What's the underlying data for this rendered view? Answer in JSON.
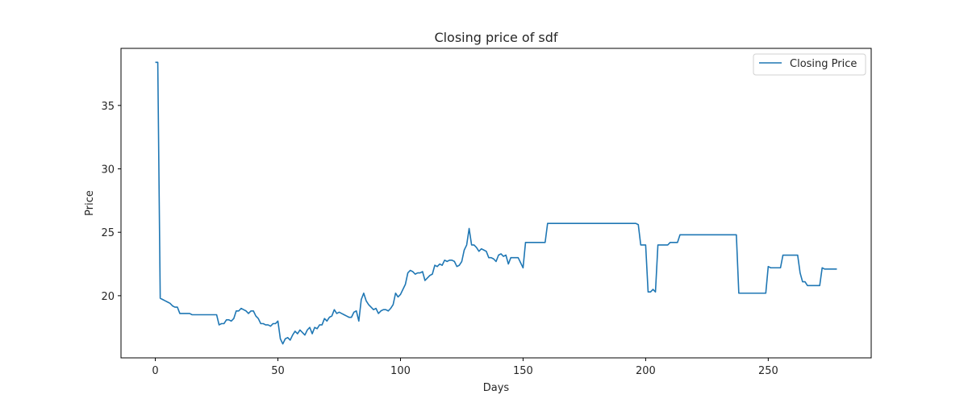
{
  "chart_data": {
    "type": "line",
    "title": "Closing price of sdf",
    "xlabel": "Days",
    "ylabel": "Price",
    "xlim": [
      -14,
      292
    ],
    "ylim": [
      15.1,
      39.5
    ],
    "xticks": [
      0,
      50,
      100,
      150,
      200,
      250
    ],
    "yticks": [
      20,
      25,
      30,
      35
    ],
    "grid": false,
    "legend_position": "top-right",
    "series": [
      {
        "name": "Closing Price",
        "color": "#1f77b4",
        "points": [
          [
            0,
            38.4
          ],
          [
            1,
            38.4
          ],
          [
            2,
            19.8
          ],
          [
            3,
            19.7
          ],
          [
            4,
            19.6
          ],
          [
            5,
            19.5
          ],
          [
            6,
            19.4
          ],
          [
            7,
            19.2
          ],
          [
            8,
            19.1
          ],
          [
            9,
            19.1
          ],
          [
            10,
            18.6
          ],
          [
            11,
            18.6
          ],
          [
            12,
            18.6
          ],
          [
            13,
            18.6
          ],
          [
            14,
            18.6
          ],
          [
            15,
            18.5
          ],
          [
            16,
            18.5
          ],
          [
            17,
            18.5
          ],
          [
            18,
            18.5
          ],
          [
            19,
            18.5
          ],
          [
            20,
            18.5
          ],
          [
            21,
            18.5
          ],
          [
            22,
            18.5
          ],
          [
            23,
            18.5
          ],
          [
            24,
            18.5
          ],
          [
            25,
            18.5
          ],
          [
            26,
            17.7
          ],
          [
            27,
            17.8
          ],
          [
            28,
            17.8
          ],
          [
            29,
            18.1
          ],
          [
            30,
            18.1
          ],
          [
            31,
            18.0
          ],
          [
            32,
            18.2
          ],
          [
            33,
            18.8
          ],
          [
            34,
            18.8
          ],
          [
            35,
            19.0
          ],
          [
            36,
            18.9
          ],
          [
            37,
            18.8
          ],
          [
            38,
            18.6
          ],
          [
            39,
            18.8
          ],
          [
            40,
            18.8
          ],
          [
            41,
            18.4
          ],
          [
            42,
            18.2
          ],
          [
            43,
            17.8
          ],
          [
            44,
            17.8
          ],
          [
            45,
            17.7
          ],
          [
            46,
            17.7
          ],
          [
            47,
            17.6
          ],
          [
            48,
            17.8
          ],
          [
            49,
            17.8
          ],
          [
            50,
            18.0
          ],
          [
            51,
            16.6
          ],
          [
            52,
            16.2
          ],
          [
            53,
            16.6
          ],
          [
            54,
            16.7
          ],
          [
            55,
            16.5
          ],
          [
            56,
            16.9
          ],
          [
            57,
            17.2
          ],
          [
            58,
            17.0
          ],
          [
            59,
            17.3
          ],
          [
            60,
            17.1
          ],
          [
            61,
            16.9
          ],
          [
            62,
            17.3
          ],
          [
            63,
            17.5
          ],
          [
            64,
            17.0
          ],
          [
            65,
            17.5
          ],
          [
            66,
            17.4
          ],
          [
            67,
            17.7
          ],
          [
            68,
            17.7
          ],
          [
            69,
            18.2
          ],
          [
            70,
            18.0
          ],
          [
            71,
            18.3
          ],
          [
            72,
            18.4
          ],
          [
            73,
            18.9
          ],
          [
            74,
            18.6
          ],
          [
            75,
            18.7
          ],
          [
            76,
            18.6
          ],
          [
            77,
            18.5
          ],
          [
            78,
            18.4
          ],
          [
            79,
            18.3
          ],
          [
            80,
            18.3
          ],
          [
            81,
            18.7
          ],
          [
            82,
            18.8
          ],
          [
            83,
            18.0
          ],
          [
            84,
            19.7
          ],
          [
            85,
            20.2
          ],
          [
            86,
            19.6
          ],
          [
            87,
            19.3
          ],
          [
            88,
            19.1
          ],
          [
            89,
            18.9
          ],
          [
            90,
            19.0
          ],
          [
            91,
            18.6
          ],
          [
            92,
            18.8
          ],
          [
            93,
            18.9
          ],
          [
            94,
            18.9
          ],
          [
            95,
            18.8
          ],
          [
            96,
            19.0
          ],
          [
            97,
            19.3
          ],
          [
            98,
            20.2
          ],
          [
            99,
            19.9
          ],
          [
            100,
            20.1
          ],
          [
            101,
            20.5
          ],
          [
            102,
            20.9
          ],
          [
            103,
            21.8
          ],
          [
            104,
            22.0
          ],
          [
            105,
            21.9
          ],
          [
            106,
            21.7
          ],
          [
            107,
            21.8
          ],
          [
            108,
            21.8
          ],
          [
            109,
            21.9
          ],
          [
            110,
            21.2
          ],
          [
            111,
            21.4
          ],
          [
            112,
            21.6
          ],
          [
            113,
            21.7
          ],
          [
            114,
            22.4
          ],
          [
            115,
            22.3
          ],
          [
            116,
            22.5
          ],
          [
            117,
            22.4
          ],
          [
            118,
            22.8
          ],
          [
            119,
            22.7
          ],
          [
            120,
            22.8
          ],
          [
            121,
            22.8
          ],
          [
            122,
            22.7
          ],
          [
            123,
            22.3
          ],
          [
            124,
            22.4
          ],
          [
            125,
            22.7
          ],
          [
            126,
            23.6
          ],
          [
            127,
            24.0
          ],
          [
            128,
            25.3
          ],
          [
            129,
            24.0
          ],
          [
            130,
            24.0
          ],
          [
            131,
            23.8
          ],
          [
            132,
            23.5
          ],
          [
            133,
            23.7
          ],
          [
            134,
            23.6
          ],
          [
            135,
            23.5
          ],
          [
            136,
            23.0
          ],
          [
            137,
            23.0
          ],
          [
            138,
            22.9
          ],
          [
            139,
            22.7
          ],
          [
            140,
            23.2
          ],
          [
            141,
            23.3
          ],
          [
            142,
            23.1
          ],
          [
            143,
            23.2
          ],
          [
            144,
            22.5
          ],
          [
            145,
            23.0
          ],
          [
            146,
            23.0
          ],
          [
            147,
            23.0
          ],
          [
            148,
            23.0
          ],
          [
            149,
            22.6
          ],
          [
            150,
            22.2
          ],
          [
            151,
            24.2
          ],
          [
            152,
            24.2
          ],
          [
            156,
            24.2
          ],
          [
            159,
            24.2
          ],
          [
            160,
            25.7
          ],
          [
            170,
            25.7
          ],
          [
            180,
            25.7
          ],
          [
            190,
            25.7
          ],
          [
            196,
            25.7
          ],
          [
            197,
            25.6
          ],
          [
            198,
            24.0
          ],
          [
            200,
            24.0
          ],
          [
            201,
            20.3
          ],
          [
            202,
            20.3
          ],
          [
            203,
            20.5
          ],
          [
            204,
            20.3
          ],
          [
            205,
            24.0
          ],
          [
            208,
            24.0
          ],
          [
            209,
            24.0
          ],
          [
            210,
            24.2
          ],
          [
            212,
            24.2
          ],
          [
            213,
            24.2
          ],
          [
            214,
            24.8
          ],
          [
            220,
            24.8
          ],
          [
            225,
            24.8
          ],
          [
            230,
            24.8
          ],
          [
            236,
            24.8
          ],
          [
            237,
            24.8
          ],
          [
            238,
            20.2
          ],
          [
            245,
            20.2
          ],
          [
            249,
            20.2
          ],
          [
            250,
            22.3
          ],
          [
            251,
            22.2
          ],
          [
            252,
            22.2
          ],
          [
            254,
            22.2
          ],
          [
            255,
            22.2
          ],
          [
            256,
            23.2
          ],
          [
            258,
            23.2
          ],
          [
            260,
            23.2
          ],
          [
            262,
            23.2
          ],
          [
            263,
            21.8
          ],
          [
            264,
            21.1
          ],
          [
            265,
            21.1
          ],
          [
            266,
            20.8
          ],
          [
            268,
            20.8
          ],
          [
            270,
            20.8
          ],
          [
            271,
            20.8
          ],
          [
            272,
            22.2
          ],
          [
            273,
            22.1
          ],
          [
            275,
            22.1
          ],
          [
            277,
            22.1
          ],
          [
            278,
            22.1
          ]
        ]
      }
    ]
  }
}
